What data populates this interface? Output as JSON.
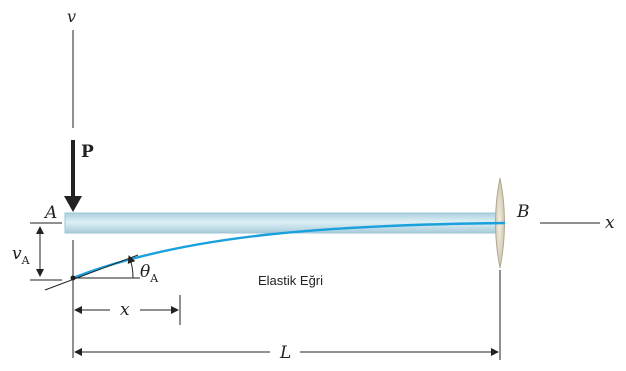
{
  "labels": {
    "v_axis": "v",
    "x_axis": "x",
    "load": "P",
    "point_a": "A",
    "point_b": "B",
    "deflection_main": "v",
    "deflection_sub": "A",
    "slope_main": "θ",
    "slope_sub": "A",
    "position": "x",
    "length": "L",
    "curve_caption": "Elastik Eğri"
  },
  "colors": {
    "beam_fill": "#bcdde9",
    "beam_edge": "#9ec6d6",
    "elastic_curve": "#1aa0dd",
    "wall": "#e4ddcc",
    "line": "#222222"
  },
  "icons": {
    "load": "down-arrow",
    "support": "fixed-wall"
  }
}
